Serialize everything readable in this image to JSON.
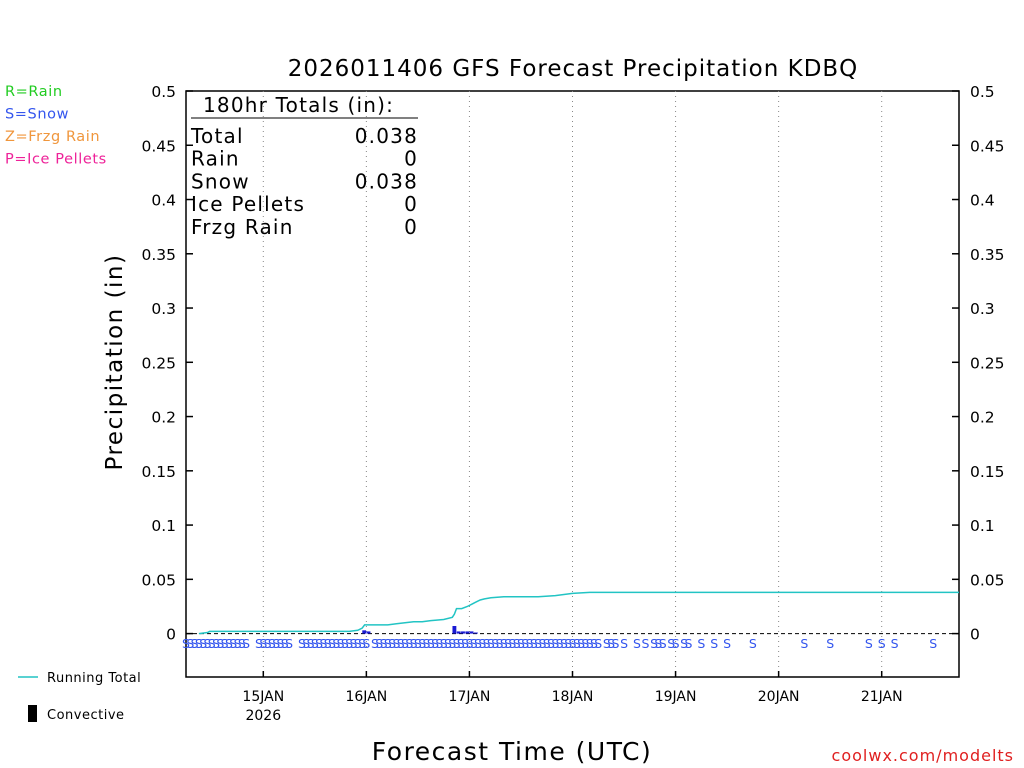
{
  "chart_data": {
    "type": "line",
    "title": "2026011406 GFS Forecast Precipitation KDBQ",
    "ylabel": "Precipitation (in)",
    "xlabel": "Forecast Time (UTC)",
    "ylim": [
      -0.04,
      0.5
    ],
    "y_ticks": [
      0,
      0.05,
      0.1,
      0.15,
      0.2,
      0.25,
      0.3,
      0.35,
      0.4,
      0.45,
      0.5
    ],
    "y_tick_labels": [
      "0",
      "0.05",
      "0.1",
      "0.15",
      "0.2",
      "0.25",
      "0.3",
      "0.35",
      "0.4",
      "0.45",
      "0.5"
    ],
    "xlim_hours": [
      6,
      186
    ],
    "x_ticks": [
      {
        "hour": 24,
        "label": "15JAN",
        "sublabel": "2026"
      },
      {
        "hour": 48,
        "label": "16JAN",
        "sublabel": ""
      },
      {
        "hour": 72,
        "label": "17JAN",
        "sublabel": ""
      },
      {
        "hour": 96,
        "label": "18JAN",
        "sublabel": ""
      },
      {
        "hour": 120,
        "label": "19JAN",
        "sublabel": ""
      },
      {
        "hour": 144,
        "label": "20JAN",
        "sublabel": ""
      },
      {
        "hour": 168,
        "label": "21JAN",
        "sublabel": ""
      }
    ],
    "grid": "vertical-dotted",
    "legend_types": [
      {
        "label": "R=Rain",
        "color": "#22cc22"
      },
      {
        "label": "S=Snow",
        "color": "#3355ee"
      },
      {
        "label": "Z=Frzg Rain",
        "color": "#f0963c"
      },
      {
        "label": "P=Ice Pellets",
        "color": "#ee2299"
      }
    ],
    "legend_series": [
      {
        "label": "Running Total",
        "color": "#22c4c4"
      },
      {
        "label": "Convective",
        "color": "#000000"
      }
    ],
    "totals": {
      "header": "180hr Totals (in):",
      "rows": [
        {
          "label": "Total",
          "value": "0.038"
        },
        {
          "label": "Rain",
          "value": "0"
        },
        {
          "label": "Snow",
          "value": "0.038"
        },
        {
          "label": "Ice Pellets",
          "value": "0"
        },
        {
          "label": "Frzg Rain",
          "value": "0"
        }
      ]
    },
    "running_total": {
      "name": "Running Total",
      "color": "#22c4c4",
      "hours": [
        9,
        11,
        11.5,
        20,
        30,
        40,
        44,
        46,
        47,
        47.6,
        50,
        53,
        55,
        57,
        59,
        61,
        63,
        66,
        68,
        68.5,
        69,
        70.2,
        71.5,
        72.5,
        73.5,
        74.5,
        75.5,
        77,
        80,
        84,
        88,
        92,
        96,
        100,
        110,
        120,
        140,
        160,
        186
      ],
      "values": [
        0,
        0.001,
        0.002,
        0.002,
        0.002,
        0.002,
        0.002,
        0.003,
        0.005,
        0.008,
        0.008,
        0.008,
        0.009,
        0.01,
        0.011,
        0.011,
        0.012,
        0.013,
        0.015,
        0.018,
        0.023,
        0.023,
        0.025,
        0.027,
        0.029,
        0.031,
        0.032,
        0.033,
        0.034,
        0.034,
        0.034,
        0.035,
        0.037,
        0.038,
        0.038,
        0.038,
        0.038,
        0.038,
        0.038
      ]
    },
    "precip_bars": {
      "name": "Snow",
      "color": "#1a1ad4",
      "width_hours": 0.9,
      "hours": [
        47.5,
        48.5,
        68.5,
        69.5,
        70.5,
        71.5,
        72.5,
        73.5
      ],
      "values": [
        0.003,
        0.002,
        0.007,
        0.002,
        0.002,
        0.002,
        0.002,
        0.001
      ]
    },
    "ptype_markers": {
      "symbol": "S",
      "color": "#3355ee",
      "hours": [
        6,
        7,
        8,
        9,
        10,
        11,
        12,
        13,
        14,
        15,
        16,
        17,
        18,
        19,
        20,
        23,
        24,
        25,
        26,
        27,
        28,
        29,
        30,
        33,
        34,
        35,
        36,
        37,
        38,
        39,
        40,
        41,
        42,
        43,
        44,
        45,
        46,
        47,
        48,
        50,
        51,
        52,
        53,
        54,
        55,
        56,
        57,
        58,
        59,
        60,
        61,
        62,
        63,
        64,
        65,
        66,
        67,
        68,
        69,
        70,
        71,
        72,
        73,
        74,
        75,
        76,
        77,
        78,
        79,
        80,
        81,
        82,
        83,
        84,
        85,
        86,
        87,
        88,
        89,
        90,
        91,
        92,
        93,
        94,
        95,
        96,
        97,
        98,
        99,
        100,
        101,
        102,
        104,
        105,
        106,
        108,
        111,
        113,
        115,
        116,
        117,
        119,
        120,
        122,
        123,
        126,
        129,
        132,
        138,
        150,
        156,
        165,
        168,
        171,
        180
      ]
    }
  },
  "watermark": "coolwx.com/modelts"
}
